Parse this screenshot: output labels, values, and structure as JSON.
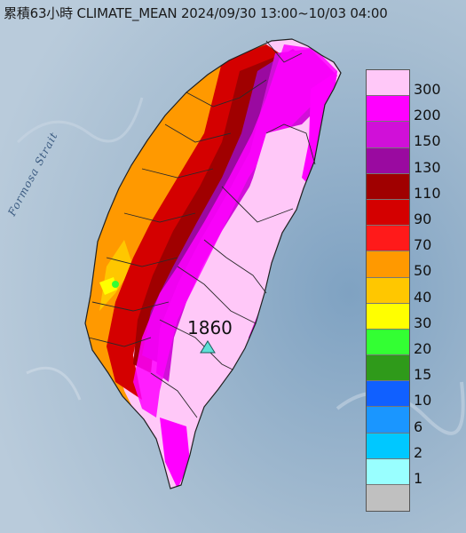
{
  "header": {
    "title": "累積63小時 CLIMATE_MEAN 2024/09/30 13:00~10/03 04:00"
  },
  "map": {
    "sea_label": "Formosa Strait",
    "station": {
      "value": "1860",
      "marker": "triangle-icon",
      "marker_color": "#5fe0d6"
    }
  },
  "legend": {
    "levels": [
      {
        "label": "300",
        "color": "#ffc8f8"
      },
      {
        "label": "200",
        "color": "#ff00ff"
      },
      {
        "label": "150",
        "color": "#d010d8"
      },
      {
        "label": "130",
        "color": "#9a0aa0"
      },
      {
        "label": "110",
        "color": "#a00000"
      },
      {
        "label": "90",
        "color": "#d40000"
      },
      {
        "label": "70",
        "color": "#ff1a1a"
      },
      {
        "label": "50",
        "color": "#ff9900"
      },
      {
        "label": "40",
        "color": "#ffc700"
      },
      {
        "label": "30",
        "color": "#ffff00"
      },
      {
        "label": "20",
        "color": "#33ff33"
      },
      {
        "label": "15",
        "color": "#2f9a1a"
      },
      {
        "label": "10",
        "color": "#1060ff"
      },
      {
        "label": "6",
        "color": "#1a96ff"
      },
      {
        "label": "2",
        "color": "#00c8ff"
      },
      {
        "label": "1",
        "color": "#99ffff"
      },
      {
        "label": "",
        "color": "#c0c0c0"
      }
    ]
  }
}
